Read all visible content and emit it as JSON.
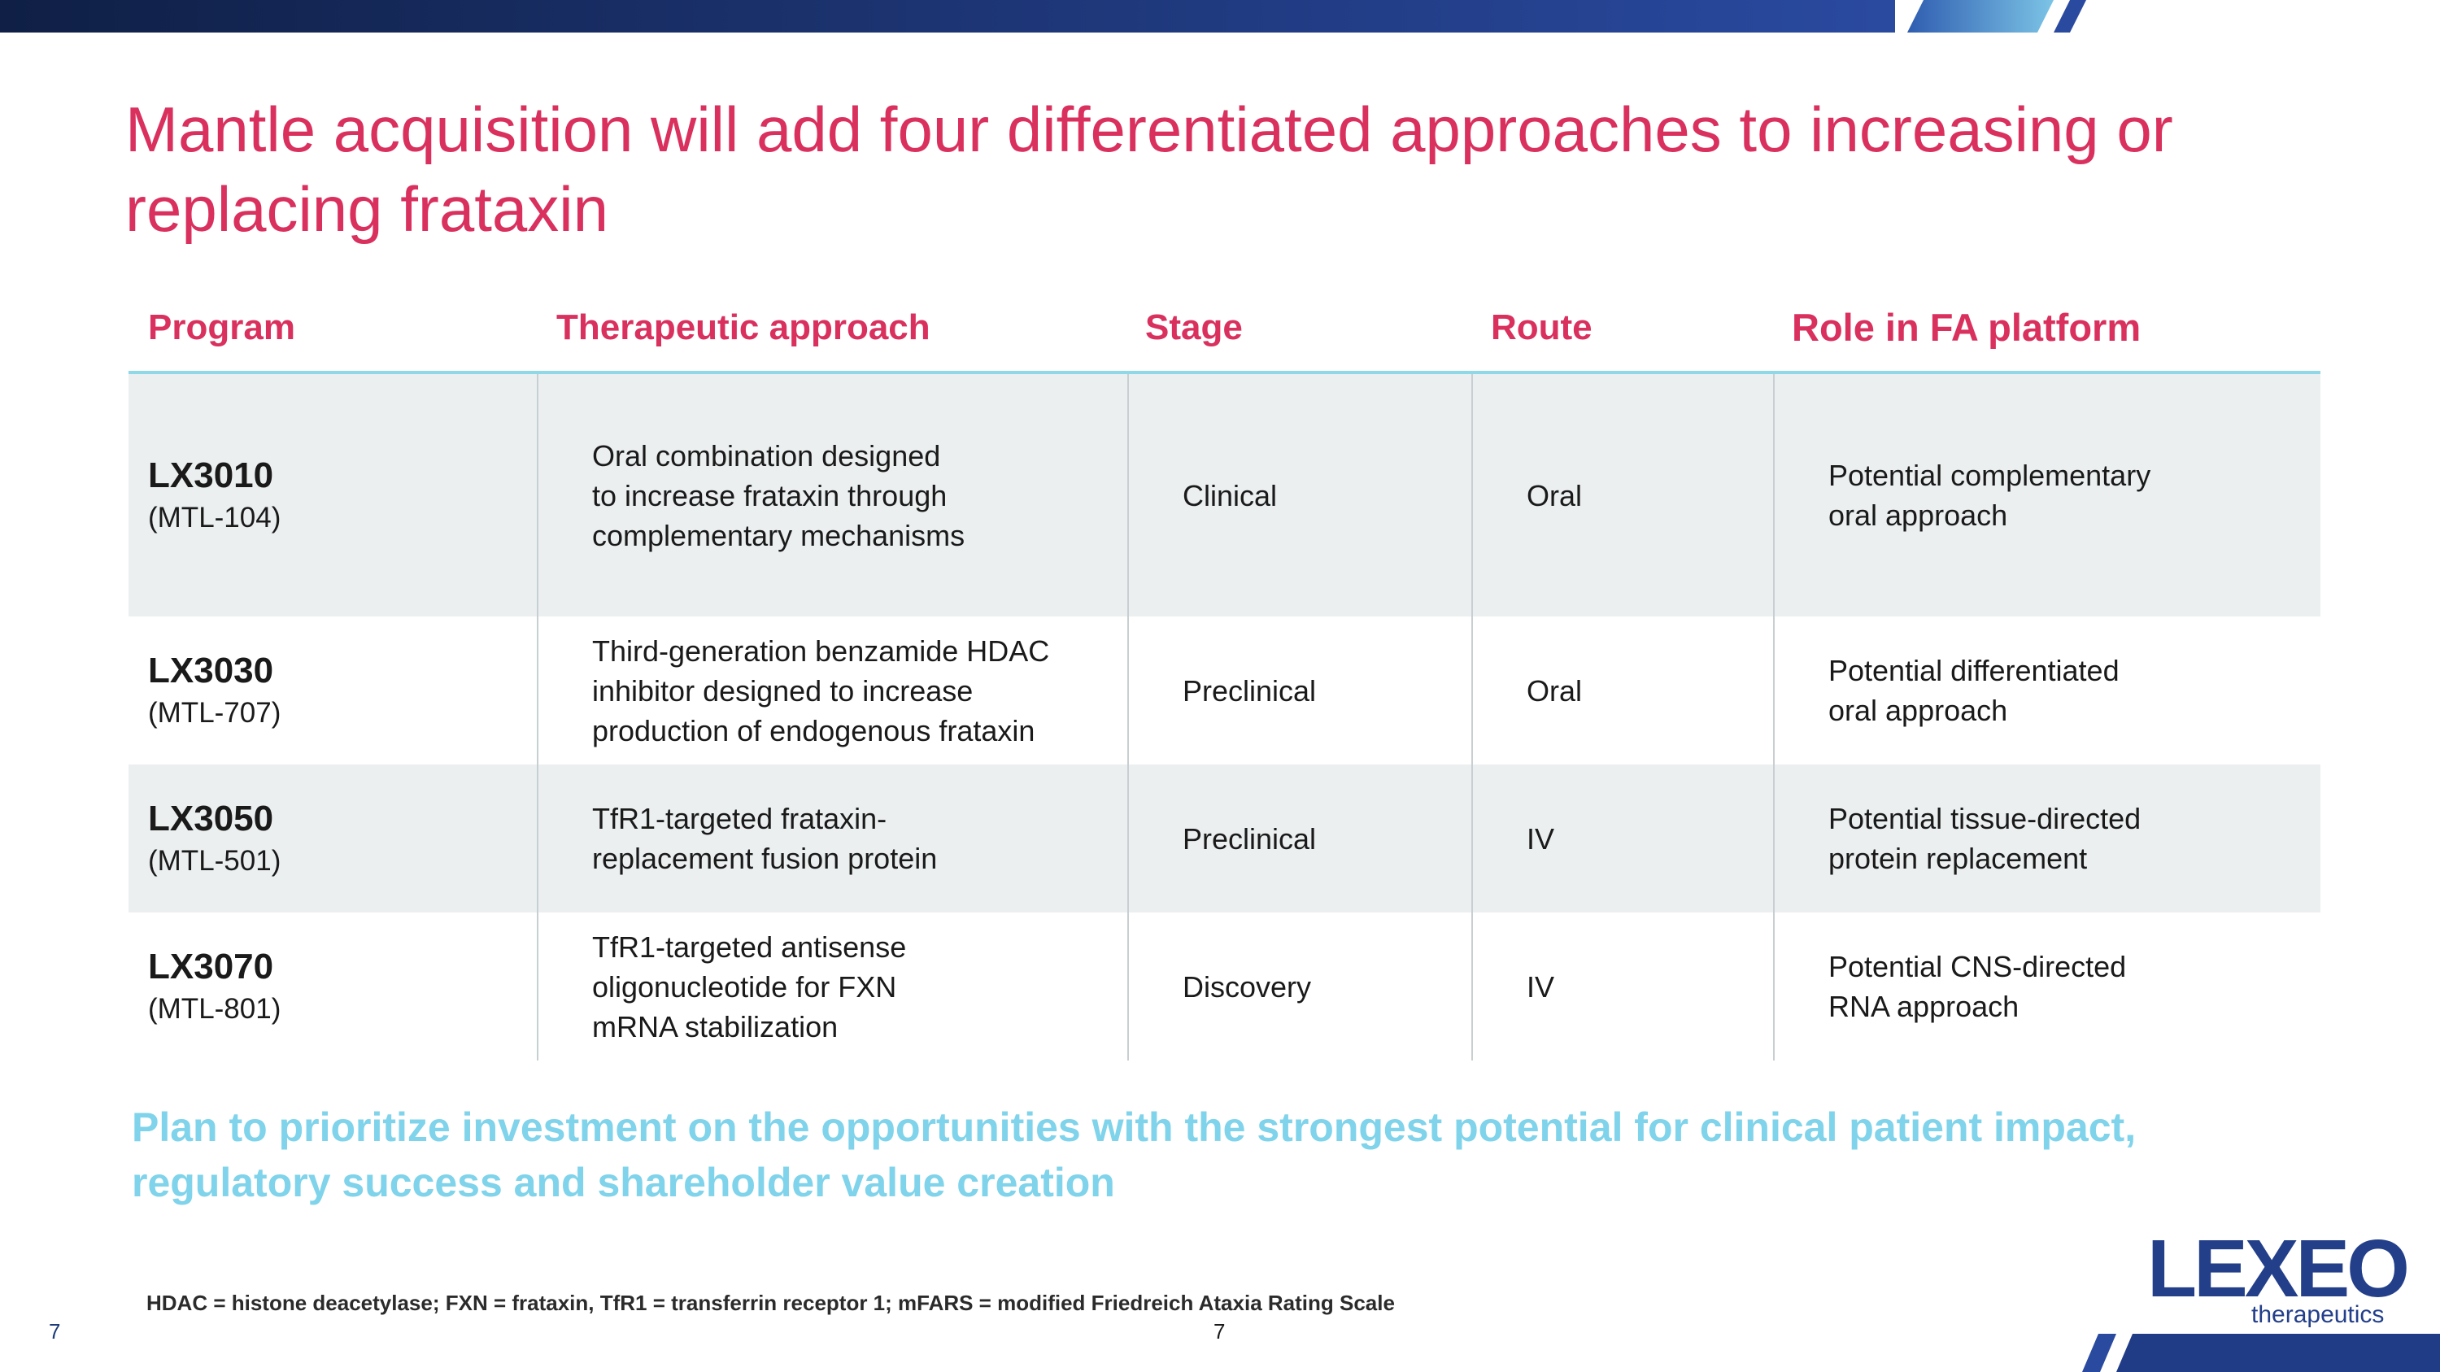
{
  "title": "Mantle acquisition will add four differentiated approaches to increasing or replacing frataxin",
  "table": {
    "headers": {
      "program": "Program",
      "approach": "Therapeutic approach",
      "stage": "Stage",
      "route": "Route",
      "role": "Role in FA platform"
    },
    "rows": [
      {
        "program": "LX3010",
        "alias": "(MTL-104)",
        "approach": [
          "Oral combination designed",
          "to increase frataxin through",
          "complementary mechanisms"
        ],
        "stage": "Clinical",
        "route": "Oral",
        "role": [
          "Potential complementary",
          "oral approach"
        ]
      },
      {
        "program": "LX3030",
        "alias": "(MTL-707)",
        "approach": [
          "Third-generation benzamide HDAC",
          "inhibitor designed to increase",
          "production of endogenous frataxin"
        ],
        "stage": "Preclinical",
        "route": "Oral",
        "role": [
          "Potential differentiated",
          "oral approach"
        ]
      },
      {
        "program": "LX3050",
        "alias": "(MTL-501)",
        "approach": [
          "TfR1-targeted frataxin-",
          "replacement fusion protein"
        ],
        "stage": "Preclinical",
        "route": "IV",
        "role": [
          "Potential tissue-directed",
          "protein replacement"
        ]
      },
      {
        "program": "LX3070",
        "alias": "(MTL-801)",
        "approach": [
          "TfR1-targeted antisense",
          "oligonucleotide for FXN",
          "mRNA stabilization"
        ],
        "stage": "Discovery",
        "route": "IV",
        "role": [
          "Potential CNS-directed",
          "RNA approach"
        ]
      }
    ]
  },
  "emphasis": [
    "Plan to prioritize investment on the opportunities with the strongest potential for clinical patient impact,",
    "regulatory success and shareholder value creation"
  ],
  "footnote": "HDAC = histone deacetylase; FXN = frataxin, TfR1 = transferrin receptor 1; mFARS = modified Friedreich Ataxia Rating Scale",
  "page_number_left": "7",
  "page_number_center": "7",
  "logo": {
    "wordmark": "LEXEO",
    "tagline": "therapeutics"
  },
  "colors": {
    "accent": "#d9305e",
    "emphasis": "#7fd3ea",
    "navy": "#1c3d7a",
    "row_shade": "#ebeff0",
    "header_rule": "#8fd8e8"
  }
}
